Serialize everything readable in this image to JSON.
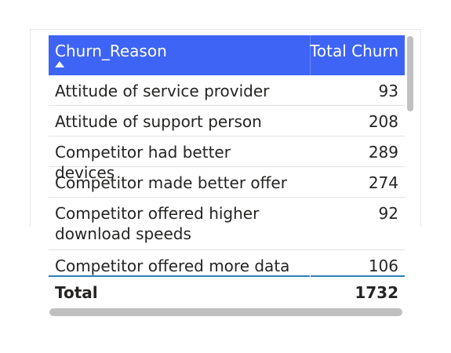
{
  "table": {
    "headers": {
      "reason": "Churn_Reason",
      "total": "Total Churn"
    },
    "sort_icon": "sort-ascending-icon",
    "rows": [
      {
        "reason": "Attitude of service provider",
        "total": "93"
      },
      {
        "reason": "Attitude of support person",
        "total": "208"
      },
      {
        "reason": "Competitor had better devices",
        "total": "289"
      },
      {
        "reason": "Competitor made better offer",
        "total": "274"
      },
      {
        "reason": "Competitor offered higher download speeds",
        "total": "92"
      },
      {
        "reason": "Competitor offered more data",
        "total": "106"
      }
    ],
    "total": {
      "label": "Total",
      "value": "1732"
    }
  },
  "colors": {
    "header_bg": "#3d64f5",
    "header_text": "#ffffff",
    "row_text": "#252423",
    "scrollbar": "#c0c0c0",
    "row_underline": "#2a7fb8"
  }
}
